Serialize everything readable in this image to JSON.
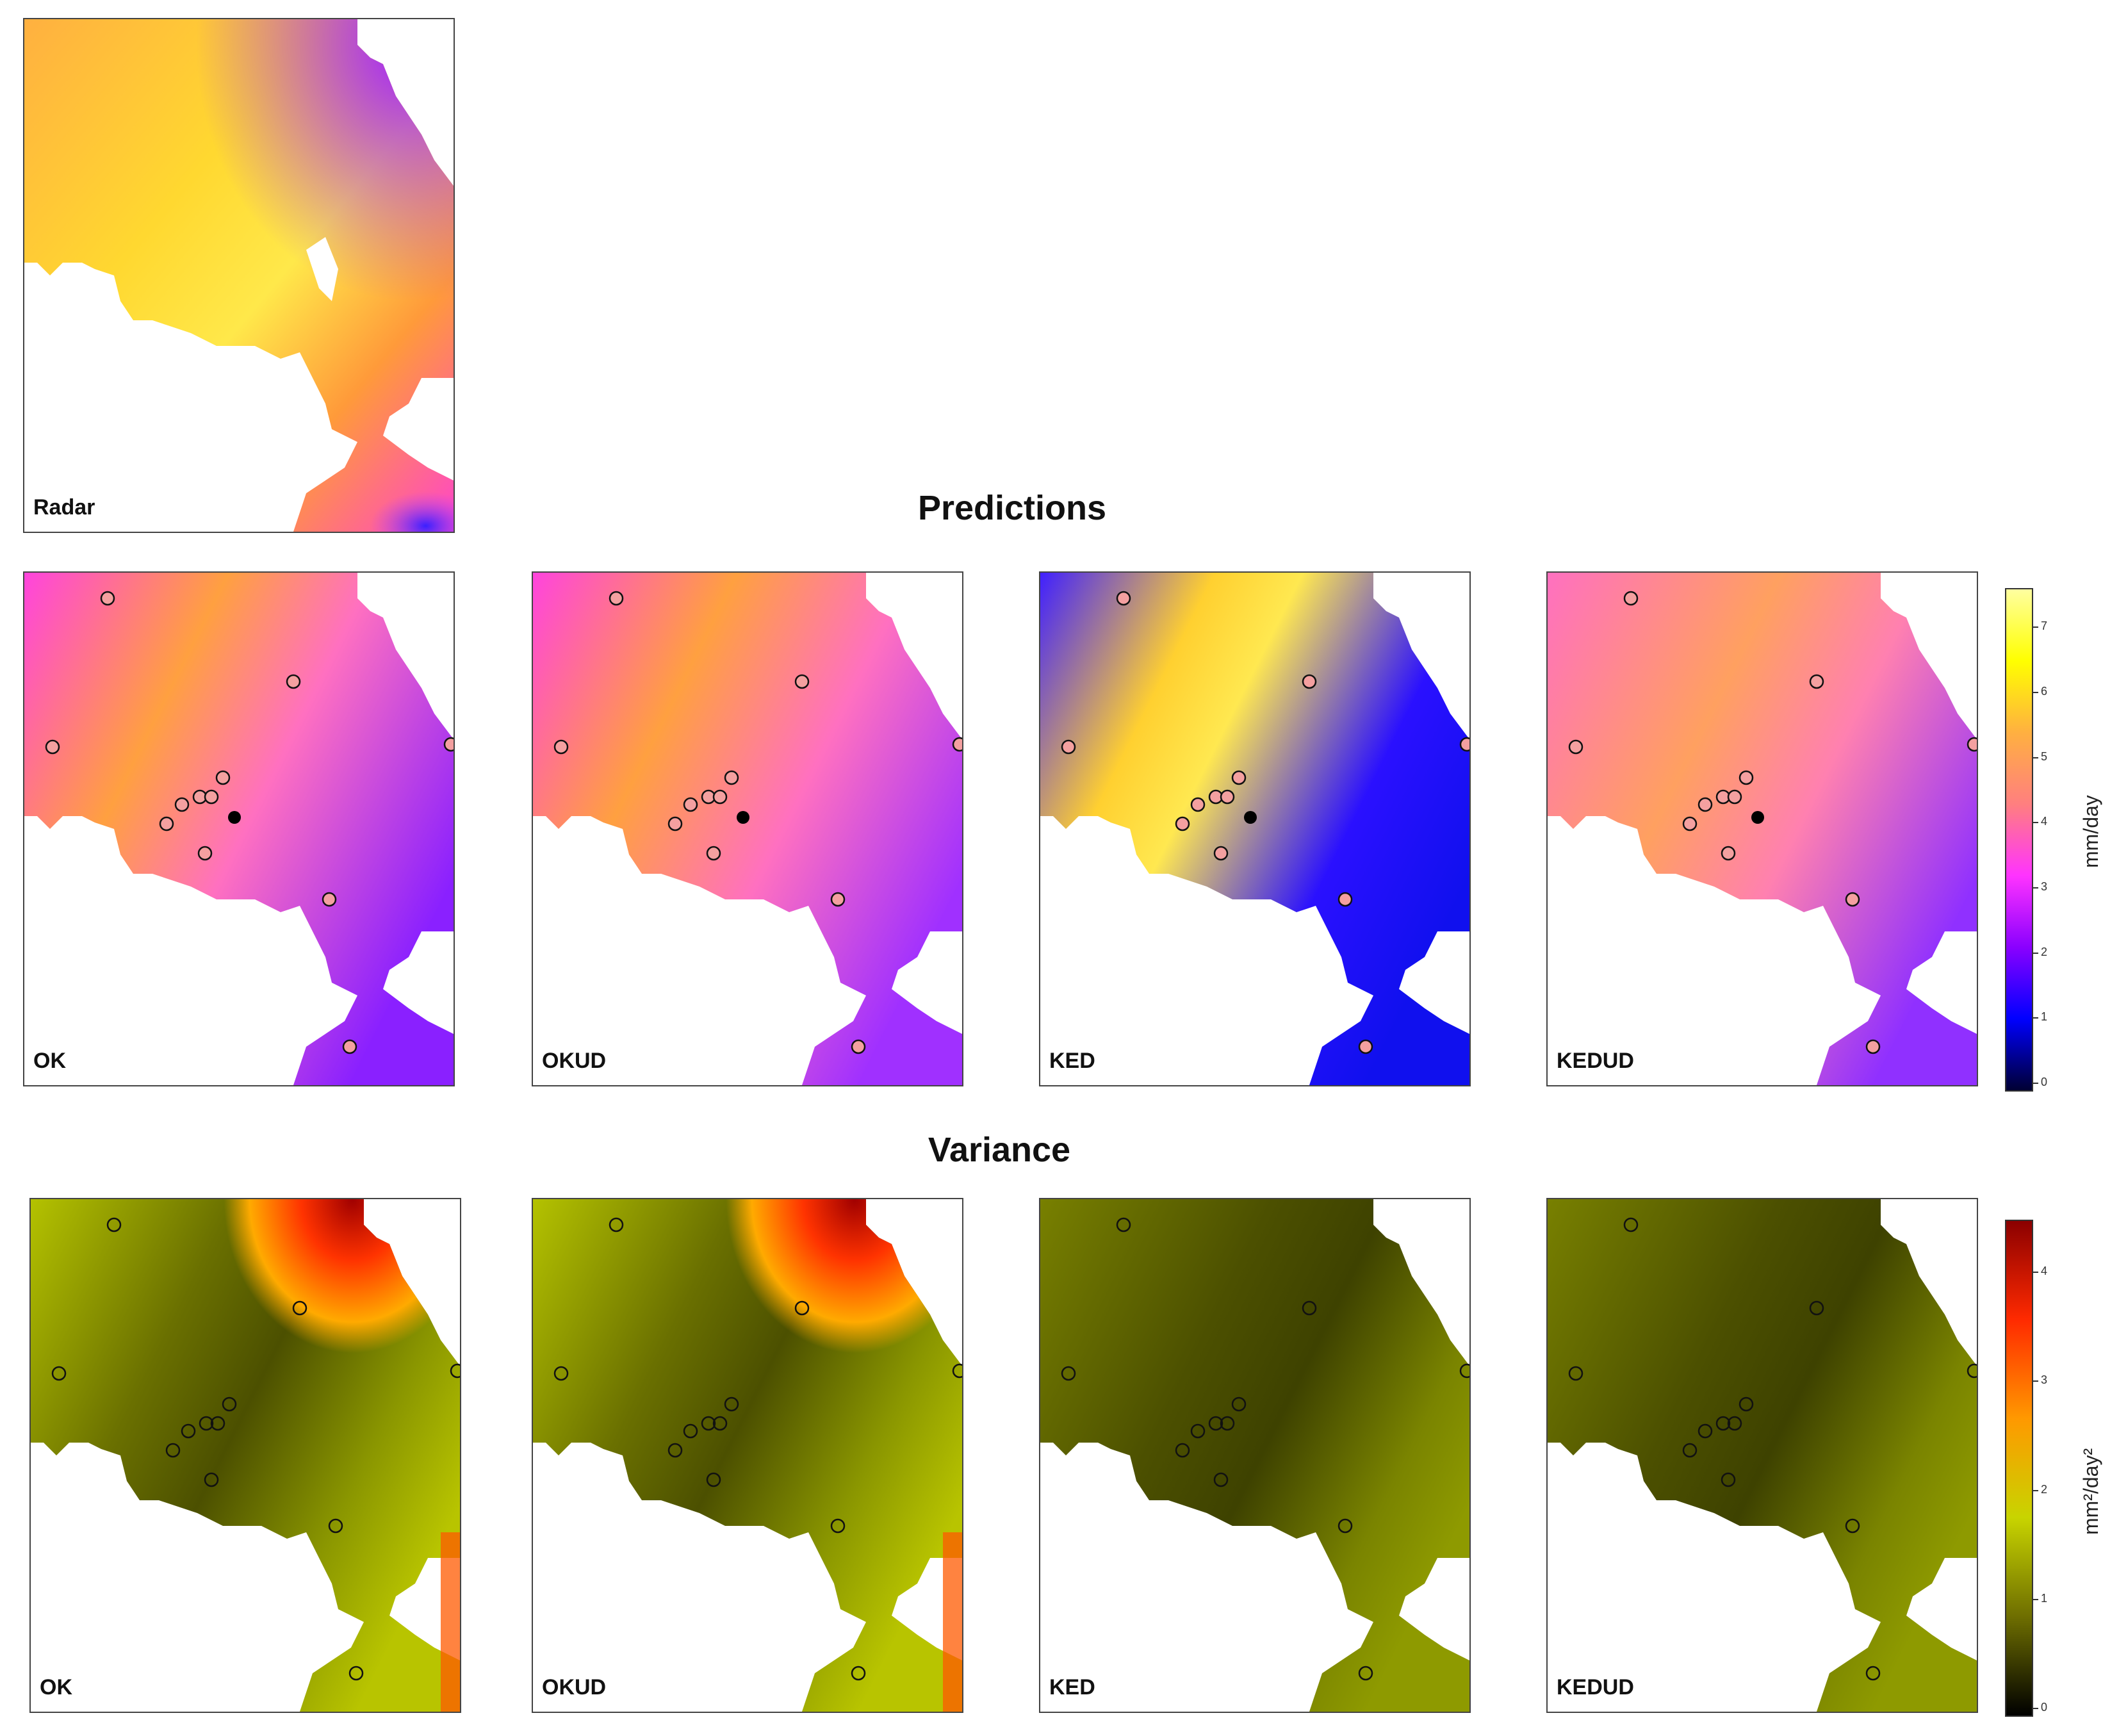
{
  "figure": {
    "sections": {
      "predictions_title": "Predictions",
      "variance_title": "Variance"
    },
    "radar_panel": {
      "label": "Radar"
    },
    "prediction_panels": [
      {
        "label": "OK",
        "palette": "smooth-ok"
      },
      {
        "label": "OKUD",
        "palette": "smooth-okud"
      },
      {
        "label": "KED",
        "palette": "noisy-ked"
      },
      {
        "label": "KEDUD",
        "palette": "smooth-kedud"
      }
    ],
    "variance_panels": [
      {
        "label": "OK",
        "palette": "var-ok"
      },
      {
        "label": "OKUD",
        "palette": "var-okud"
      },
      {
        "label": "KED",
        "palette": "var-ked"
      },
      {
        "label": "KEDUD",
        "palette": "var-kedud"
      }
    ],
    "prediction_legend": {
      "unit": "mm/day",
      "ticks": [
        "0",
        "1",
        "2",
        "3",
        "4",
        "5",
        "6",
        "7"
      ],
      "colors": [
        "#000033",
        "#0000ff",
        "#8a00ff",
        "#ff33ff",
        "#ff7f7f",
        "#ffb040",
        "#ffff00",
        "#ffffa0"
      ]
    },
    "variance_legend": {
      "unit": "mm²/day²",
      "ticks": [
        "0",
        "1",
        "2",
        "3",
        "4"
      ],
      "colors": [
        "#000000",
        "#6e6e00",
        "#c8d400",
        "#ff9900",
        "#ff2a00",
        "#8b0000"
      ]
    },
    "station_marker": {
      "fill_open": "#f4a0a0",
      "fill_target": "#000000"
    }
  }
}
